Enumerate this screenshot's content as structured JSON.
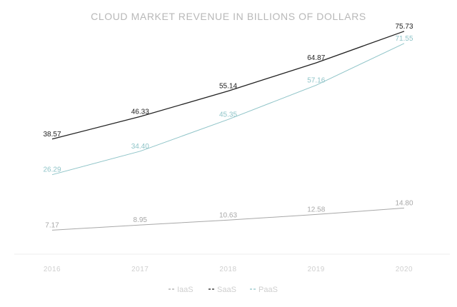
{
  "chart_data": {
    "type": "line",
    "title": "CLOUD MARKET REVENUE IN BILLIONS OF DOLLARS",
    "xlabel": "",
    "ylabel": "",
    "categories": [
      "2016",
      "2017",
      "2018",
      "2019",
      "2020"
    ],
    "ylim": [
      0,
      80
    ],
    "grid": false,
    "legend_position": "bottom-center",
    "series": [
      {
        "name": "IaaS",
        "color": "#a8a8a8",
        "values": [
          7.17,
          8.95,
          10.63,
          12.58,
          14.8
        ],
        "labels": [
          "7.17",
          "8.95",
          "10.63",
          "12.58",
          "14.80"
        ]
      },
      {
        "name": "SaaS",
        "color": "#222222",
        "values": [
          38.57,
          46.33,
          55.14,
          64.87,
          75.73
        ],
        "labels": [
          "38.57",
          "46.33",
          "55.14",
          "64.87",
          "75.73"
        ]
      },
      {
        "name": "PaaS",
        "color": "#8fc4c8",
        "values": [
          26.29,
          34.4,
          45.35,
          57.16,
          71.55
        ],
        "labels": [
          "26.29",
          "34.40",
          "45.35",
          "57.16",
          "71.55"
        ]
      }
    ]
  }
}
